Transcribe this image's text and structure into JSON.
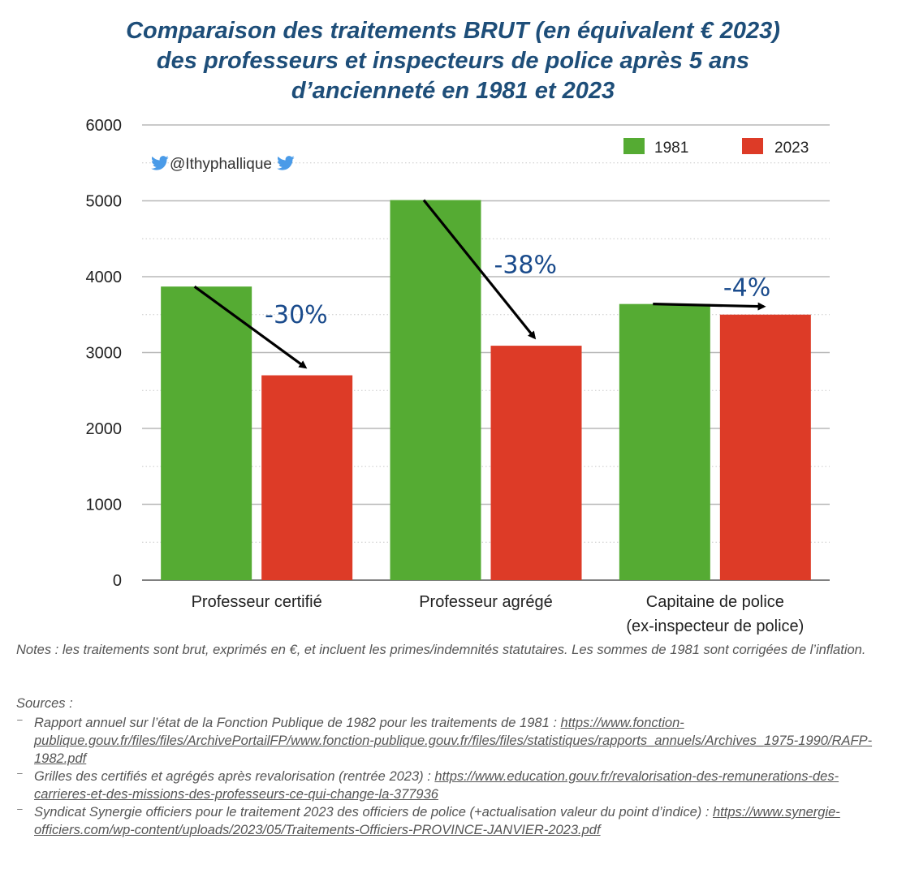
{
  "title_lines": [
    "Comparaison des traitements BRUT (en équivalent € 2023)",
    "des professeurs et inspecteurs de police après 5 ans",
    "d’ancienneté en 1981 et 2023"
  ],
  "handle": "@Ithyphallique",
  "colors": {
    "s1981": "#55ab33",
    "s2023": "#dd3b27",
    "title": "#1e4e79",
    "annotation": "#1a4b8c"
  },
  "chart_data": {
    "type": "bar",
    "categories": [
      [
        "Professeur certifié"
      ],
      [
        "Professeur agrégé"
      ],
      [
        "Capitaine de police",
        "(ex-inspecteur de police)"
      ]
    ],
    "series": [
      {
        "name": "1981",
        "values": [
          3870,
          5010,
          3640
        ]
      },
      {
        "name": "2023",
        "values": [
          2700,
          3090,
          3500
        ]
      }
    ],
    "ylim": [
      0,
      6000
    ],
    "yticks": [
      "0",
      "1000",
      "2000",
      "3000",
      "4000",
      "5000",
      "6000"
    ],
    "grid": true,
    "legend": "top-right",
    "annotations": [
      "-30%",
      "-38%",
      "-4%"
    ]
  },
  "notes": "Notes : les traitements sont brut, exprimés en €, et incluent les primes/indemnités statutaires. Les sommes de 1981 sont corrigées de l’inflation.",
  "sources_label": "Sources :",
  "sources": [
    {
      "text": "Rapport annuel sur l’état de la Fonction Publique de 1982 pour les traitements de 1981 : ",
      "link": "https://www.fonction-publique.gouv.fr/files/files/ArchivePortailFP/www.fonction-publique.gouv.fr/files/files/statistiques/rapports_annuels/Archives_1975-1990/RAFP-1982.pdf"
    },
    {
      "text": "Grilles des certifiés et agrégés après revalorisation (rentrée 2023) : ",
      "link": "https://www.education.gouv.fr/revalorisation-des-remunerations-des-carrieres-et-des-missions-des-professeurs-ce-qui-change-la-377936"
    },
    {
      "text": "Syndicat Synergie officiers pour le traitement 2023 des officiers de police (+actualisation valeur du point d’indice) : ",
      "link": "https://www.synergie-officiers.com/wp-content/uploads/2023/05/Traitements-Officiers-PROVINCE-JANVIER-2023.pdf"
    }
  ]
}
